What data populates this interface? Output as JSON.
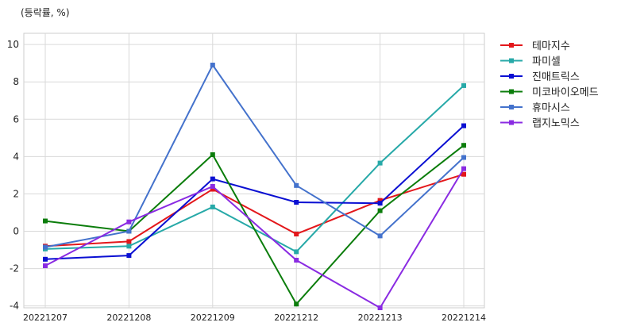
{
  "chart_data": {
    "type": "line",
    "ylabel": "(등락률, %)",
    "x": [
      "20221207",
      "20221208",
      "20221209",
      "20221212",
      "20221213",
      "20221214"
    ],
    "ylim": [
      -4.1,
      10.6
    ],
    "yticks": [
      -4,
      -2,
      0,
      2,
      4,
      6,
      8,
      10
    ],
    "grid": true,
    "legend_position": "outside-right-top",
    "series": [
      {
        "name": "테마지수",
        "color": "#e3171b",
        "values": [
          -0.8,
          -0.55,
          2.25,
          -0.15,
          1.65,
          3.05
        ]
      },
      {
        "name": "파미셀",
        "color": "#27a9a8",
        "values": [
          -0.95,
          -0.8,
          1.3,
          -1.1,
          3.65,
          7.8
        ]
      },
      {
        "name": "진매트릭스",
        "color": "#0a0fd2",
        "values": [
          -1.5,
          -1.3,
          2.8,
          1.55,
          1.5,
          5.65
        ]
      },
      {
        "name": "미코바이오메드",
        "color": "#0b7d0b",
        "values": [
          0.55,
          0.0,
          4.1,
          -3.9,
          1.1,
          4.6
        ]
      },
      {
        "name": "휴마시스",
        "color": "#4472cc",
        "values": [
          -0.85,
          0.0,
          8.9,
          2.45,
          -0.25,
          3.95
        ]
      },
      {
        "name": "랩지노믹스",
        "color": "#8a2be2",
        "values": [
          -1.85,
          0.5,
          2.4,
          -1.55,
          -4.1,
          3.35
        ]
      }
    ]
  }
}
